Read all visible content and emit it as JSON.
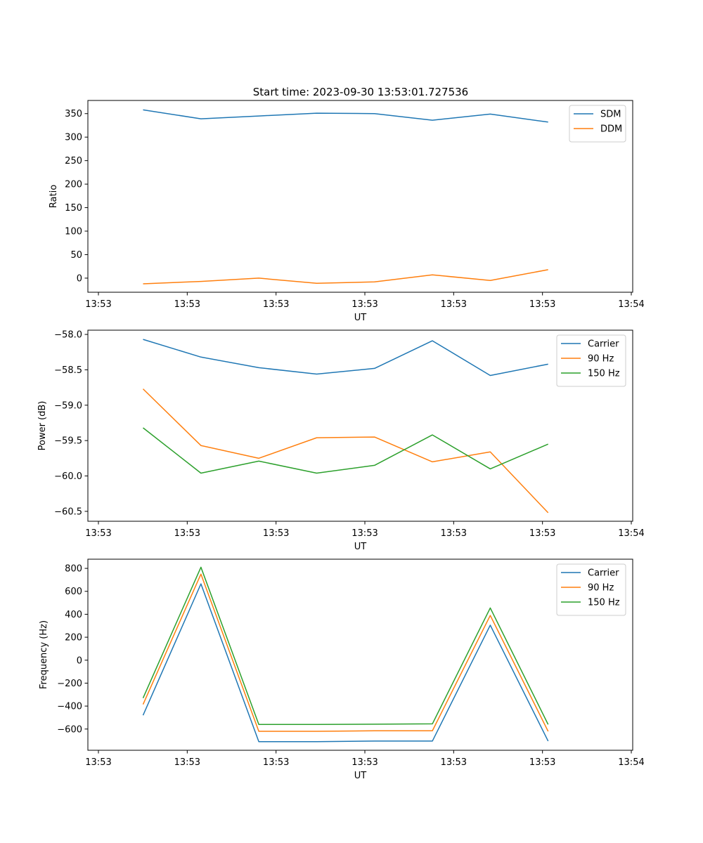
{
  "figure_title": "Start time: 2023-09-30 13:53:01.727536",
  "chart_data": [
    {
      "type": "line",
      "title": "Start time: 2023-09-30 13:53:01.727536",
      "xlabel": "UT",
      "ylabel": "Ratio",
      "x_tick_labels": [
        "13:53",
        "13:53",
        "13:53",
        "13:53",
        "13:53",
        "13:53",
        "13:54"
      ],
      "x": [
        0.5,
        1.15,
        1.8,
        2.45,
        3.1,
        3.75,
        4.4,
        5.05
      ],
      "xlim": [
        -0.12,
        6.0
      ],
      "yticks": [
        0,
        50,
        100,
        150,
        200,
        250,
        300,
        350
      ],
      "ylim": [
        -30,
        378
      ],
      "legend_position": "top-right",
      "series": [
        {
          "name": "SDM",
          "color": "#1f77b4",
          "values": [
            358,
            339,
            345,
            351,
            350,
            336,
            349,
            332
          ]
        },
        {
          "name": "DDM",
          "color": "#ff7f0e",
          "values": [
            -12,
            -7,
            0,
            -11,
            -8,
            7,
            -5,
            18
          ]
        }
      ]
    },
    {
      "type": "line",
      "title": "",
      "xlabel": "UT",
      "ylabel": "Power (dB)",
      "x_tick_labels": [
        "13:53",
        "13:53",
        "13:53",
        "13:53",
        "13:53",
        "13:53",
        "13:54"
      ],
      "x": [
        0.5,
        1.15,
        1.8,
        2.45,
        3.1,
        3.75,
        4.4,
        5.05
      ],
      "xlim": [
        -0.12,
        6.0
      ],
      "yticks": [
        -58.0,
        -58.5,
        -59.0,
        -59.5,
        -60.0,
        -60.5
      ],
      "ytick_labels": [
        "−58.0",
        "−58.5",
        "−59.0",
        "−59.5",
        "−60.0",
        "−60.5"
      ],
      "ylim": [
        -60.64,
        -57.94
      ],
      "legend_position": "top-right",
      "series": [
        {
          "name": "Carrier",
          "color": "#1f77b4",
          "values": [
            -58.07,
            -58.32,
            -58.47,
            -58.56,
            -58.48,
            -58.09,
            -58.58,
            -58.42
          ]
        },
        {
          "name": "90 Hz",
          "color": "#ff7f0e",
          "values": [
            -58.77,
            -59.57,
            -59.75,
            -59.46,
            -59.45,
            -59.8,
            -59.66,
            -60.52
          ]
        },
        {
          "name": "150 Hz",
          "color": "#2ca02c",
          "values": [
            -59.32,
            -59.96,
            -59.79,
            -59.96,
            -59.85,
            -59.42,
            -59.9,
            -59.55
          ]
        }
      ]
    },
    {
      "type": "line",
      "title": "",
      "xlabel": "UT",
      "ylabel": "Frequency (Hz)",
      "x_tick_labels": [
        "13:53",
        "13:53",
        "13:53",
        "13:53",
        "13:53",
        "13:53",
        "13:54"
      ],
      "x": [
        0.5,
        1.15,
        1.8,
        2.45,
        3.1,
        3.75,
        4.4,
        5.05
      ],
      "xlim": [
        -0.12,
        6.0
      ],
      "yticks": [
        800,
        600,
        400,
        200,
        0,
        -200,
        -400,
        -600
      ],
      "ytick_labels": [
        "800",
        "600",
        "400",
        "200",
        "0",
        "−200",
        "−400",
        "−600"
      ],
      "ylim": [
        -785,
        880
      ],
      "legend_position": "top-right",
      "series": [
        {
          "name": "Carrier",
          "color": "#1f77b4",
          "values": [
            -480,
            665,
            -710,
            -710,
            -705,
            -705,
            305,
            -705
          ]
        },
        {
          "name": "90 Hz",
          "color": "#ff7f0e",
          "values": [
            -385,
            750,
            -620,
            -620,
            -615,
            -615,
            390,
            -620
          ]
        },
        {
          "name": "150 Hz",
          "color": "#2ca02c",
          "values": [
            -330,
            810,
            -560,
            -560,
            -558,
            -555,
            455,
            -560
          ]
        }
      ]
    }
  ]
}
